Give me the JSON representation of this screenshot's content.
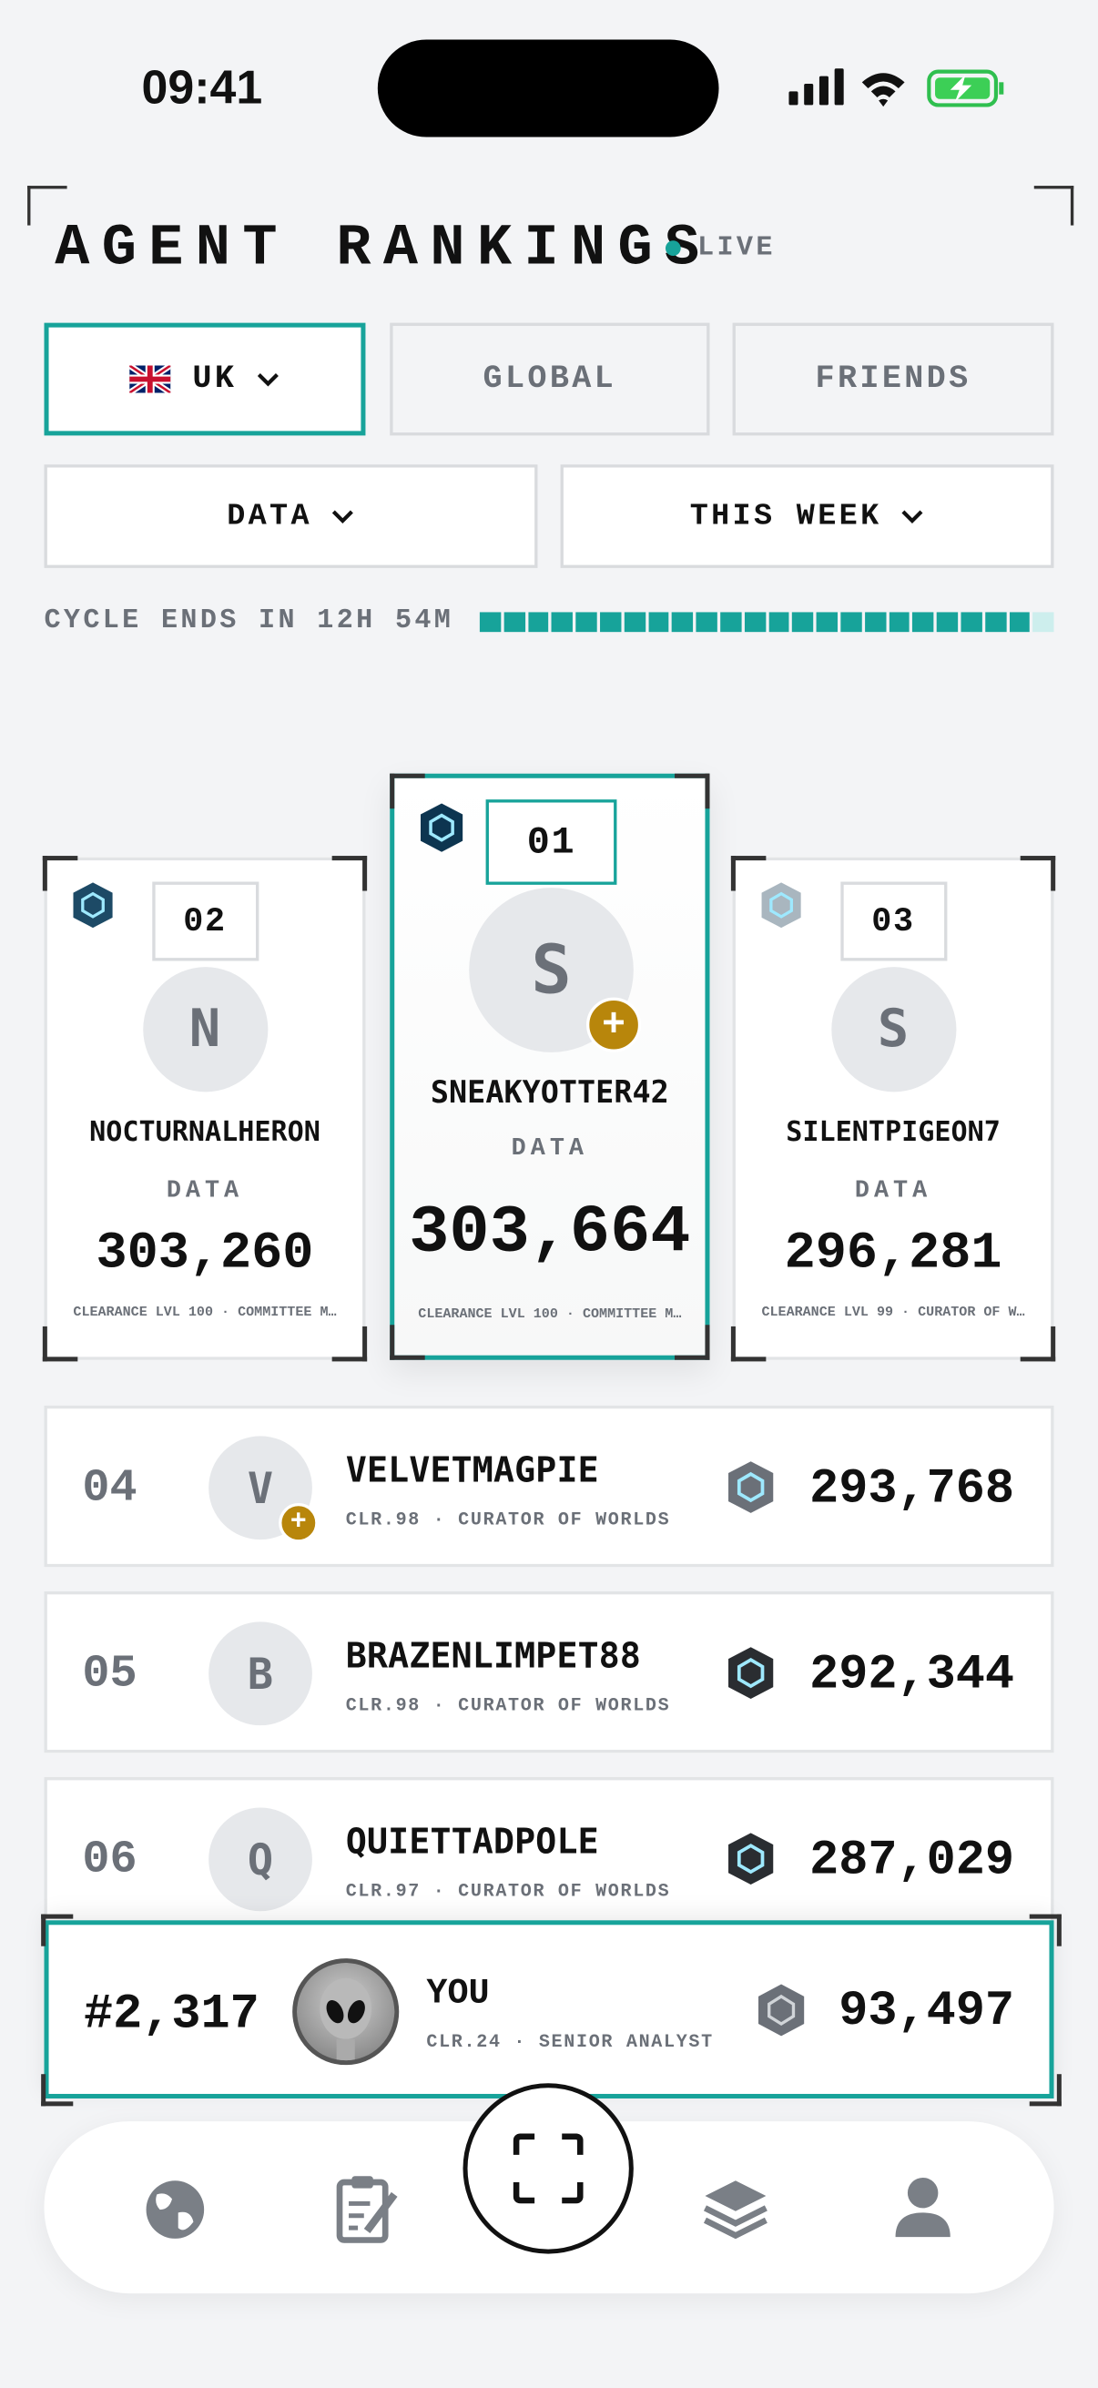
{
  "status": {
    "time": "09:41"
  },
  "header": {
    "title": "AGENT RANKINGS",
    "live": "LIVE"
  },
  "tabs": [
    "UK",
    "GLOBAL",
    "FRIENDS"
  ],
  "filters": [
    "DATA",
    "THIS WEEK"
  ],
  "cycle": "CYCLE ENDS IN 12H 54M",
  "podium": [
    {
      "rank": "02",
      "initial": "N",
      "name": "NOCTURNALHERON",
      "category": "DATA",
      "score": "303,260",
      "meta": "CLEARANCE LVL 100 · COMMITTEE M…"
    },
    {
      "rank": "01",
      "initial": "S",
      "name": "SNEAKYOTTER42",
      "category": "DATA",
      "score": "303,664",
      "meta": "CLEARANCE LVL 100 · COMMITTEE M…"
    },
    {
      "rank": "03",
      "initial": "S",
      "name": "SILENTPIGEON7",
      "category": "DATA",
      "score": "296,281",
      "meta": "CLEARANCE LVL 99 · CURATOR OF W…"
    }
  ],
  "rows": [
    {
      "rank": "04",
      "initial": "V",
      "name": "VELVETMAGPIE",
      "meta": "CLR.98 · CURATOR OF WORLDS",
      "score": "293,768"
    },
    {
      "rank": "05",
      "initial": "B",
      "name": "BRAZENLIMPET88",
      "meta": "CLR.98 · CURATOR OF WORLDS",
      "score": "292,344"
    },
    {
      "rank": "06",
      "initial": "Q",
      "name": "QUIETTADPOLE",
      "meta": "CLR.97 · CURATOR OF WORLDS",
      "score": "287,029"
    }
  ],
  "you": {
    "rank": "#2,317",
    "name": "YOU",
    "meta": "CLR.24 · SENIOR ANALYST",
    "score": "93,497"
  }
}
